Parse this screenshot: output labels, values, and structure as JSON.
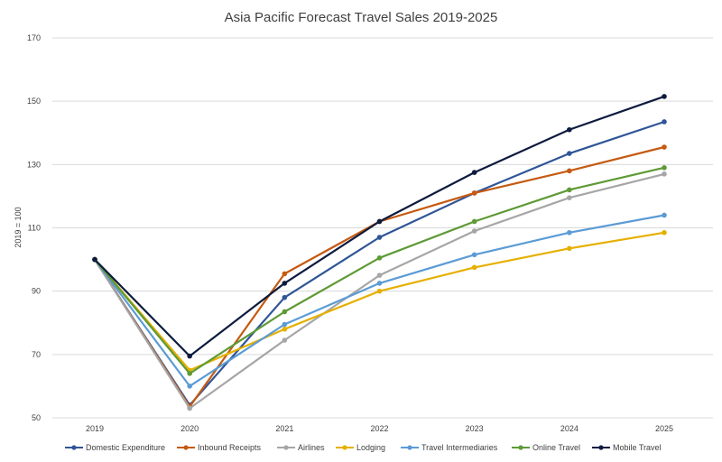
{
  "chart_data": {
    "type": "line",
    "title": "Asia Pacific Forecast Travel Sales 2019-2025",
    "xlabel": "",
    "ylabel": "2019 = 100",
    "x": [
      "2019",
      "2020",
      "2021",
      "2022",
      "2023",
      "2024",
      "2025"
    ],
    "ylim": [
      50,
      170
    ],
    "yticks": [
      50,
      70,
      90,
      110,
      130,
      150,
      170
    ],
    "grid": "horizontal",
    "legend_position": "bottom",
    "series": [
      {
        "name": "Domestic Expenditure",
        "color": "#2f5597",
        "values": [
          100,
          54,
          88,
          107,
          121,
          133.5,
          143.5
        ]
      },
      {
        "name": "Inbound Receipts",
        "color": "#c55a11",
        "values": [
          100,
          53.5,
          95.5,
          112,
          121,
          128,
          135.5
        ]
      },
      {
        "name": "Airlines",
        "color": "#a6a6a6",
        "values": [
          100,
          53,
          74.5,
          95,
          109,
          119.5,
          127
        ]
      },
      {
        "name": "Lodging",
        "color": "#e6b000",
        "values": [
          100,
          65,
          78,
          90,
          97.5,
          103.5,
          108.5
        ]
      },
      {
        "name": "Travel Intermediaries",
        "color": "#5b9bd5",
        "values": [
          100,
          60,
          79.5,
          92.5,
          101.5,
          108.5,
          114
        ]
      },
      {
        "name": "Online Travel",
        "color": "#5e9a35",
        "values": [
          100,
          64,
          83.5,
          100.5,
          112,
          122,
          129
        ]
      },
      {
        "name": "Mobile Travel",
        "color": "#0d1b3e",
        "values": [
          100,
          69.5,
          92.5,
          112,
          127.5,
          141,
          151.5
        ]
      }
    ]
  }
}
